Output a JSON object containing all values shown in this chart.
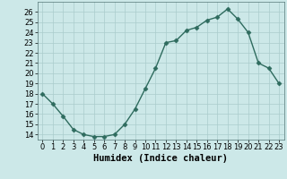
{
  "x": [
    0,
    1,
    2,
    3,
    4,
    5,
    6,
    7,
    8,
    9,
    10,
    11,
    12,
    13,
    14,
    15,
    16,
    17,
    18,
    19,
    20,
    21,
    22,
    23
  ],
  "y": [
    18.0,
    17.0,
    15.8,
    14.5,
    14.0,
    13.8,
    13.8,
    14.0,
    15.0,
    16.5,
    18.5,
    20.5,
    23.0,
    23.2,
    24.2,
    24.5,
    25.2,
    25.5,
    26.3,
    25.3,
    24.0,
    21.0,
    20.5,
    19.0
  ],
  "line_color": "#2e6b5e",
  "marker": "D",
  "marker_size": 2.5,
  "bg_color": "#cce8e8",
  "grid_color": "#aacccc",
  "xlabel": "Humidex (Indice chaleur)",
  "ylim": [
    13.5,
    27.0
  ],
  "xlim": [
    -0.5,
    23.5
  ],
  "yticks": [
    14,
    15,
    16,
    17,
    18,
    19,
    20,
    21,
    22,
    23,
    24,
    25,
    26
  ],
  "xticks": [
    0,
    1,
    2,
    3,
    4,
    5,
    6,
    7,
    8,
    9,
    10,
    11,
    12,
    13,
    14,
    15,
    16,
    17,
    18,
    19,
    20,
    21,
    22,
    23
  ],
  "xlabel_fontsize": 7.5,
  "tick_fontsize": 6.0,
  "linewidth": 1.0
}
